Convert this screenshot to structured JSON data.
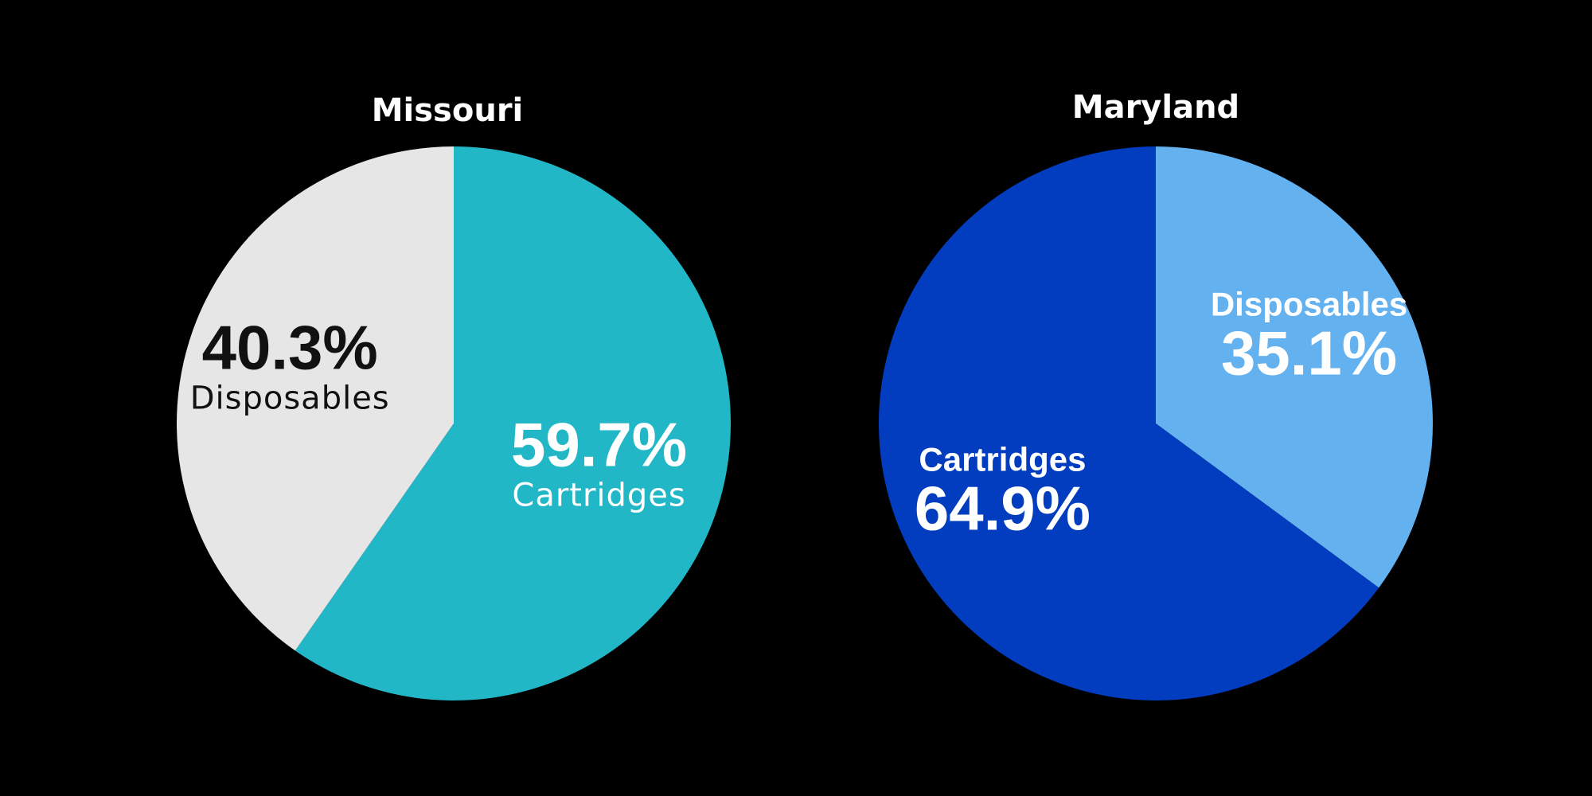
{
  "chart_data": [
    {
      "type": "pie",
      "title": "Missouri",
      "categories": [
        "Cartridges",
        "Disposables"
      ],
      "values": [
        59.7,
        40.3
      ],
      "value_labels": [
        "59.7%",
        "40.3%"
      ],
      "colors": [
        "#22b7c7",
        "#e6e6e6"
      ],
      "label_colors": [
        "#ffffff",
        "#111111"
      ],
      "label_order": [
        "value-first",
        "value-first"
      ]
    },
    {
      "type": "pie",
      "title": "Maryland",
      "categories": [
        "Disposables",
        "Cartridges"
      ],
      "values": [
        35.1,
        64.9
      ],
      "value_labels": [
        "35.1%",
        "64.9%"
      ],
      "colors": [
        "#63b1ef",
        "#023cbf"
      ],
      "label_colors": [
        "#ffffff",
        "#ffffff"
      ],
      "label_order": [
        "category-first",
        "category-first"
      ]
    }
  ]
}
